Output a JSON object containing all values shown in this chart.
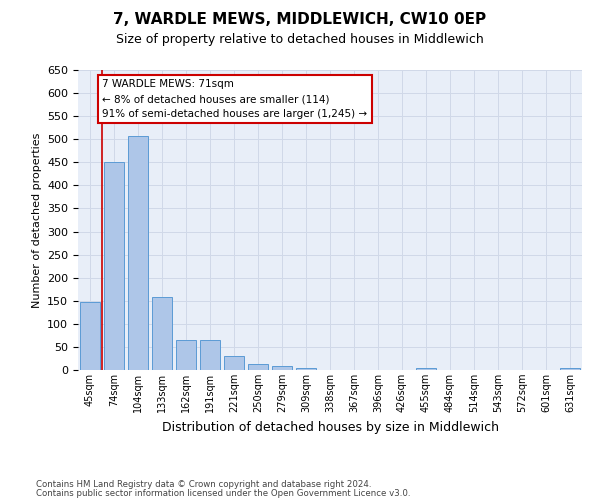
{
  "title": "7, WARDLE MEWS, MIDDLEWICH, CW10 0EP",
  "subtitle": "Size of property relative to detached houses in Middlewich",
  "xlabel": "Distribution of detached houses by size in Middlewich",
  "ylabel": "Number of detached properties",
  "footer_line1": "Contains HM Land Registry data © Crown copyright and database right 2024.",
  "footer_line2": "Contains public sector information licensed under the Open Government Licence v3.0.",
  "categories": [
    "45sqm",
    "74sqm",
    "104sqm",
    "133sqm",
    "162sqm",
    "191sqm",
    "221sqm",
    "250sqm",
    "279sqm",
    "309sqm",
    "338sqm",
    "367sqm",
    "396sqm",
    "426sqm",
    "455sqm",
    "484sqm",
    "514sqm",
    "543sqm",
    "572sqm",
    "601sqm",
    "631sqm"
  ],
  "values": [
    148,
    450,
    507,
    158,
    65,
    65,
    30,
    14,
    9,
    5,
    0,
    0,
    0,
    0,
    5,
    0,
    0,
    0,
    0,
    0,
    5
  ],
  "bar_color": "#aec6e8",
  "bar_edge_color": "#5b9bd5",
  "grid_color": "#d0d8e8",
  "background_color": "#e8eef8",
  "ylim": [
    0,
    650
  ],
  "yticks": [
    0,
    50,
    100,
    150,
    200,
    250,
    300,
    350,
    400,
    450,
    500,
    550,
    600,
    650
  ],
  "annotation_line1": "7 WARDLE MEWS: 71sqm",
  "annotation_line2": "← 8% of detached houses are smaller (114)",
  "annotation_line3": "91% of semi-detached houses are larger (1,245) →",
  "annotation_box_color": "#ffffff",
  "annotation_box_edge": "#cc0000",
  "red_line_x": 0.5,
  "title_fontsize": 11,
  "subtitle_fontsize": 9,
  "ylabel_fontsize": 8,
  "xlabel_fontsize": 9,
  "tick_fontsize": 8,
  "xtick_fontsize": 7
}
